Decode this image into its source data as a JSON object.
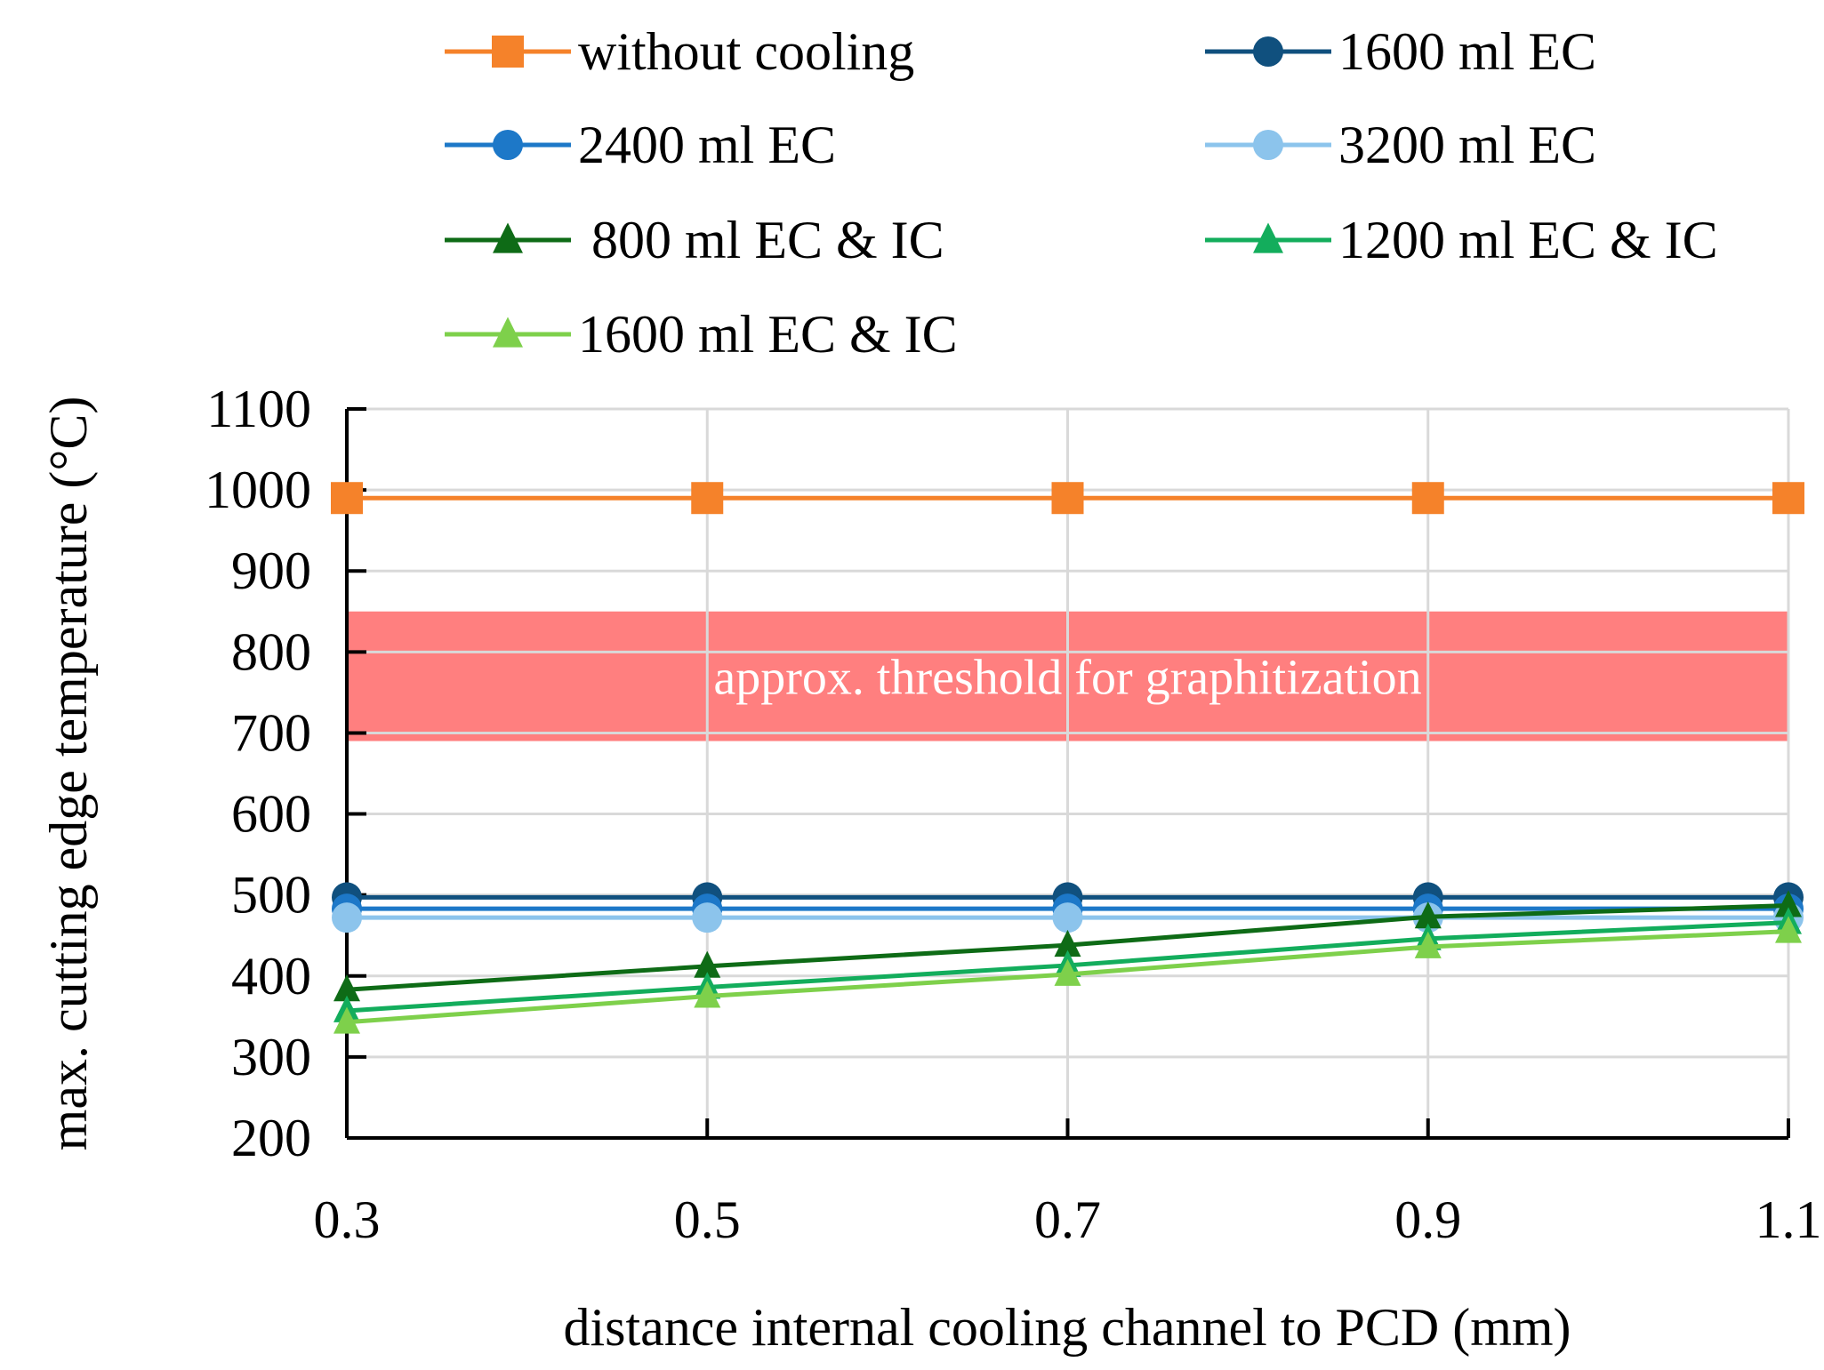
{
  "chart_data": {
    "type": "line",
    "x": [
      0.3,
      0.5,
      0.7,
      0.9,
      1.1
    ],
    "x_tick_labels": [
      "0.3",
      "0.5",
      "0.7",
      "0.9",
      "1.1"
    ],
    "y_ticks": [
      200,
      300,
      400,
      500,
      600,
      700,
      800,
      900,
      1000,
      1100
    ],
    "y_tick_labels": [
      "200",
      "300",
      "400",
      "500",
      "600",
      "700",
      "800",
      "900",
      "1000",
      "1100"
    ],
    "xlim": [
      0.3,
      1.1
    ],
    "ylim": [
      200,
      1100
    ],
    "grid": true,
    "xlabel": "distance internal cooling channel to PCD (mm)",
    "ylabel": "max. cutting edge temperature (°C)",
    "threshold_band": {
      "label": "approx. threshold for graphitization",
      "y_range": [
        690,
        850
      ],
      "color": "#ff7f7f"
    },
    "legend_position": "top",
    "series": [
      {
        "name": "without cooling",
        "marker": "square",
        "color": "#f5822a",
        "values": [
          990,
          990,
          990,
          990,
          990
        ]
      },
      {
        "name": "1600 ml EC",
        "marker": "circle",
        "color": "#10507e",
        "values": [
          497,
          497,
          497,
          497,
          497
        ]
      },
      {
        "name": "2400 ml EC",
        "marker": "circle",
        "color": "#1d78c8",
        "values": [
          483,
          483,
          483,
          483,
          483
        ]
      },
      {
        "name": "3200 ml EC",
        "marker": "circle",
        "color": "#8cc4ec",
        "values": [
          472,
          472,
          472,
          472,
          472
        ]
      },
      {
        "name": " 800 ml EC & IC",
        "marker": "triangle",
        "color": "#0e6b16",
        "values": [
          383,
          412,
          438,
          473,
          487
        ]
      },
      {
        "name": "1200 ml EC & IC",
        "marker": "triangle",
        "color": "#13ad5c",
        "values": [
          357,
          386,
          413,
          446,
          466
        ]
      },
      {
        "name": "1600 ml EC & IC",
        "marker": "triangle",
        "color": "#7ed04b",
        "values": [
          343,
          375,
          402,
          436,
          455
        ]
      }
    ]
  }
}
